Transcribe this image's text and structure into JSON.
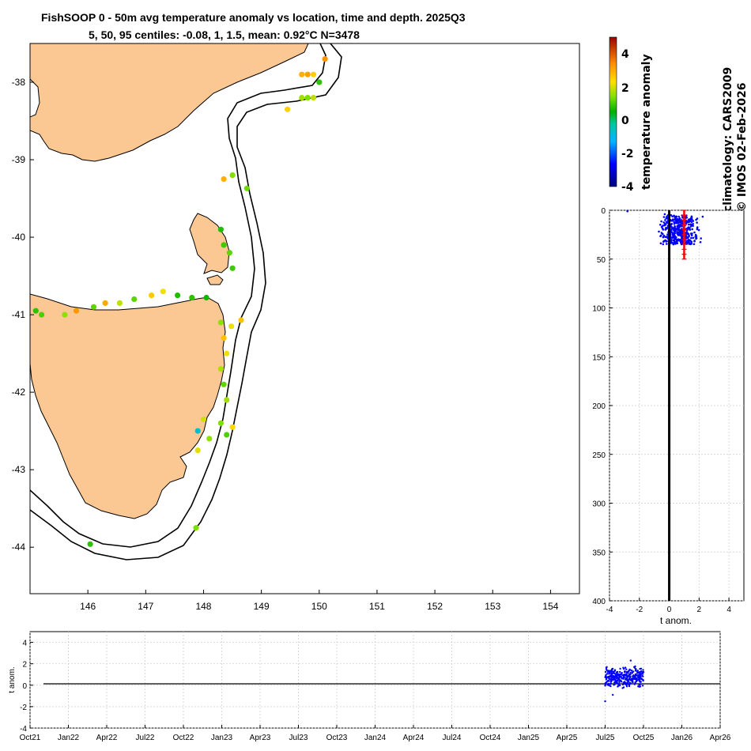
{
  "title_line1": "FishSOOP 0 - 50m avg temperature anomaly vs location, time and depth. 2025Q3",
  "title_line2": "5, 50, 95 centiles: -0.08, 1, 1.5, mean: 0.92°C N=3478",
  "colorbar": {
    "label": "temperature anomaly",
    "ticks": [
      "4",
      "2",
      "0",
      "-2",
      "-4"
    ]
  },
  "side_text": {
    "line1": "climatology: CARS2009",
    "line2": "© IMOS 02-Feb-2026"
  },
  "colors": {
    "land": "#fbc894",
    "profile_dots": "#0000ff",
    "mean_profile": "#ff0000"
  },
  "chart_data": [
    {
      "type": "scatter",
      "name": "map",
      "xlim": [
        145,
        154.5
      ],
      "ylim": [
        -44.6,
        -37.5
      ],
      "x_ticks": [
        "146",
        "147",
        "148",
        "149",
        "150",
        "151",
        "152",
        "153",
        "154"
      ],
      "y_ticks": [
        "-38",
        "-39",
        "-40",
        "-41",
        "-42",
        "-43",
        "-44"
      ],
      "points": [
        [
          149.7,
          -37.9,
          2.2
        ],
        [
          149.8,
          -37.9,
          2.4
        ],
        [
          149.9,
          -37.9,
          1.8
        ],
        [
          150.0,
          -38.0,
          0.3
        ],
        [
          150.1,
          -37.7,
          2.6
        ],
        [
          149.7,
          -38.2,
          1.0
        ],
        [
          149.8,
          -38.2,
          0.8
        ],
        [
          149.9,
          -38.2,
          1.2
        ],
        [
          149.45,
          -38.35,
          1.8
        ],
        [
          148.35,
          -39.25,
          2.2
        ],
        [
          148.5,
          -39.2,
          0.8
        ],
        [
          148.75,
          -39.37,
          0.7
        ],
        [
          148.3,
          -39.9,
          0.2
        ],
        [
          148.35,
          -40.1,
          0.4
        ],
        [
          148.45,
          -40.2,
          0.6
        ],
        [
          148.5,
          -40.4,
          0.4
        ],
        [
          145.1,
          -40.95,
          0.3
        ],
        [
          145.2,
          -41.0,
          0.5
        ],
        [
          145.6,
          -41.0,
          0.9
        ],
        [
          145.8,
          -40.95,
          2.5
        ],
        [
          146.1,
          -40.9,
          0.6
        ],
        [
          146.3,
          -40.85,
          2.3
        ],
        [
          146.55,
          -40.85,
          1.2
        ],
        [
          146.8,
          -40.8,
          0.6
        ],
        [
          147.1,
          -40.75,
          1.9
        ],
        [
          147.3,
          -40.7,
          1.5
        ],
        [
          147.55,
          -40.75,
          0.2
        ],
        [
          147.8,
          -40.78,
          0.3
        ],
        [
          148.05,
          -40.78,
          0.1
        ],
        [
          148.3,
          -41.1,
          0.9
        ],
        [
          148.35,
          -41.3,
          2.0
        ],
        [
          148.4,
          -41.5,
          1.5
        ],
        [
          148.3,
          -41.7,
          1.1
        ],
        [
          148.35,
          -41.9,
          0.6
        ],
        [
          148.4,
          -42.1,
          1.0
        ],
        [
          148.3,
          -42.4,
          0.8
        ],
        [
          148.0,
          -42.35,
          1.3
        ],
        [
          147.9,
          -42.5,
          -1.1
        ],
        [
          148.1,
          -42.6,
          0.9
        ],
        [
          148.4,
          -42.55,
          0.5
        ],
        [
          148.5,
          -42.45,
          1.7
        ],
        [
          147.9,
          -42.75,
          1.4
        ],
        [
          147.87,
          -43.75,
          0.8
        ],
        [
          146.04,
          -43.96,
          0.3
        ],
        [
          148.65,
          -41.07,
          2.0
        ],
        [
          148.48,
          -41.15,
          1.5
        ]
      ]
    },
    {
      "type": "scatter",
      "name": "depth-profile",
      "xlabel": "t anom.",
      "xlim": [
        -4,
        5
      ],
      "ylim": [
        0,
        400
      ],
      "x_ticks": [
        "-4",
        "-2",
        "0",
        "2",
        "4"
      ],
      "y_ticks": [
        "0",
        "50",
        "100",
        "150",
        "200",
        "250",
        "300",
        "350",
        "400"
      ],
      "mean_profile": {
        "x": 1.0,
        "depth_top": 0,
        "depth_bottom": 50
      },
      "cluster": {
        "x_min": -1.0,
        "x_max": 2.4,
        "depth_min": 5,
        "depth_max": 35
      },
      "outliers": [
        [
          -2.8,
          1
        ],
        [
          -0.3,
          4
        ],
        [
          1.0,
          45
        ]
      ]
    },
    {
      "type": "scatter",
      "name": "time-series",
      "ylabel": "t anom.",
      "ylim": [
        -4,
        5
      ],
      "y_ticks": [
        "4",
        "2",
        "0",
        "-2",
        "-4"
      ],
      "x_ticks": [
        "Oct21",
        "Jan22",
        "Apr22",
        "Jul22",
        "Oct22",
        "Jan23",
        "Apr23",
        "Jul23",
        "Oct23",
        "Jan24",
        "Apr24",
        "Jul24",
        "Oct24",
        "Jan25",
        "Apr25",
        "Jul25",
        "Oct25",
        "Jan26",
        "Apr26"
      ],
      "cluster": {
        "month_start": 45.0,
        "month_end": 48.0,
        "y_min": -0.3,
        "y_max": 1.8
      },
      "outliers": [
        [
          45.0,
          -1.5
        ],
        [
          45.6,
          -0.9
        ],
        [
          47.0,
          2.3
        ]
      ]
    }
  ]
}
